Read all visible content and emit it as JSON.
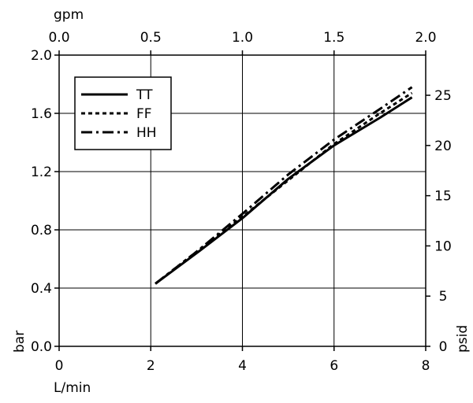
{
  "chart_data": {
    "type": "line",
    "x_bottom": {
      "label": "L/min",
      "range": [
        0,
        8
      ],
      "ticks": [
        "0",
        "2",
        "4",
        "6",
        "8"
      ]
    },
    "x_top": {
      "label": "gpm",
      "range": [
        0,
        2.0
      ],
      "ticks": [
        "0.0",
        "0.5",
        "1.0",
        "1.5",
        "2.0"
      ]
    },
    "y_left": {
      "label": "bar",
      "range": [
        0,
        2.0
      ],
      "ticks": [
        "0.0",
        "0.4",
        "0.8",
        "1.2",
        "1.6",
        "2.0"
      ]
    },
    "y_right": {
      "label": "psid",
      "range": [
        0,
        29
      ],
      "ticks": [
        "0",
        "5",
        "10",
        "15",
        "20",
        "25"
      ]
    },
    "grid": true,
    "legend_position": "top-left",
    "series": [
      {
        "name": "TT",
        "style": "solid",
        "x": [
          2.1,
          3.0,
          4.0,
          5.0,
          6.0,
          7.0,
          7.7
        ],
        "y": [
          0.43,
          0.64,
          0.88,
          1.15,
          1.38,
          1.57,
          1.71
        ]
      },
      {
        "name": "FF",
        "style": "dotted",
        "x": [
          2.1,
          3.0,
          4.0,
          5.0,
          6.0,
          7.0,
          7.7
        ],
        "y": [
          0.43,
          0.65,
          0.89,
          1.14,
          1.39,
          1.6,
          1.74
        ]
      },
      {
        "name": "HH",
        "style": "dash-dot",
        "x": [
          2.1,
          3.0,
          4.0,
          5.0,
          6.0,
          7.0,
          7.7
        ],
        "y": [
          0.43,
          0.65,
          0.91,
          1.18,
          1.42,
          1.63,
          1.78
        ]
      }
    ]
  }
}
